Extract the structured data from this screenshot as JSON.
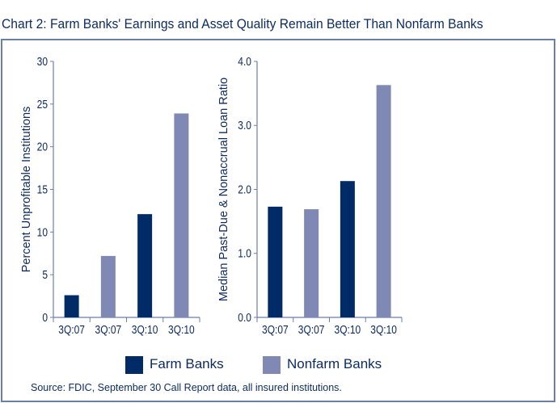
{
  "title": "Chart 2: Farm Banks' Earnings and Asset Quality Remain Better Than Nonfarm Banks",
  "legend": [
    {
      "label": "Farm Banks",
      "color": "#002b66"
    },
    {
      "label": "Nonfarm Banks",
      "color": "#8089b4"
    }
  ],
  "source": "Source: FDIC, September 30 Call Report data, all insured institutions.",
  "chart_data": [
    {
      "type": "bar",
      "categories": [
        "3Q:07",
        "3Q:07",
        "3Q:10",
        "3Q:10"
      ],
      "series_of_bar": [
        "Farm Banks",
        "Nonfarm Banks",
        "Farm Banks",
        "Nonfarm Banks"
      ],
      "values": [
        2.6,
        7.2,
        12.1,
        23.9
      ],
      "ylabel": "Percent Unprofitable Institutions",
      "ylim": [
        0,
        30
      ],
      "yticks": [
        "0",
        "5",
        "10",
        "15",
        "20",
        "25",
        "30"
      ],
      "grid": false
    },
    {
      "type": "bar",
      "categories": [
        "3Q:07",
        "3Q:07",
        "3Q:10",
        "3Q:10"
      ],
      "series_of_bar": [
        "Farm Banks",
        "Nonfarm Banks",
        "Farm Banks",
        "Nonfarm Banks"
      ],
      "values": [
        1.73,
        1.69,
        2.13,
        3.63
      ],
      "ylabel": "Median Past-Due & Nonaccrual Loan Ratio",
      "ylim": [
        0,
        4
      ],
      "yticks": [
        "0.0",
        "1.0",
        "2.0",
        "3.0",
        "4.0"
      ],
      "grid": false
    }
  ]
}
